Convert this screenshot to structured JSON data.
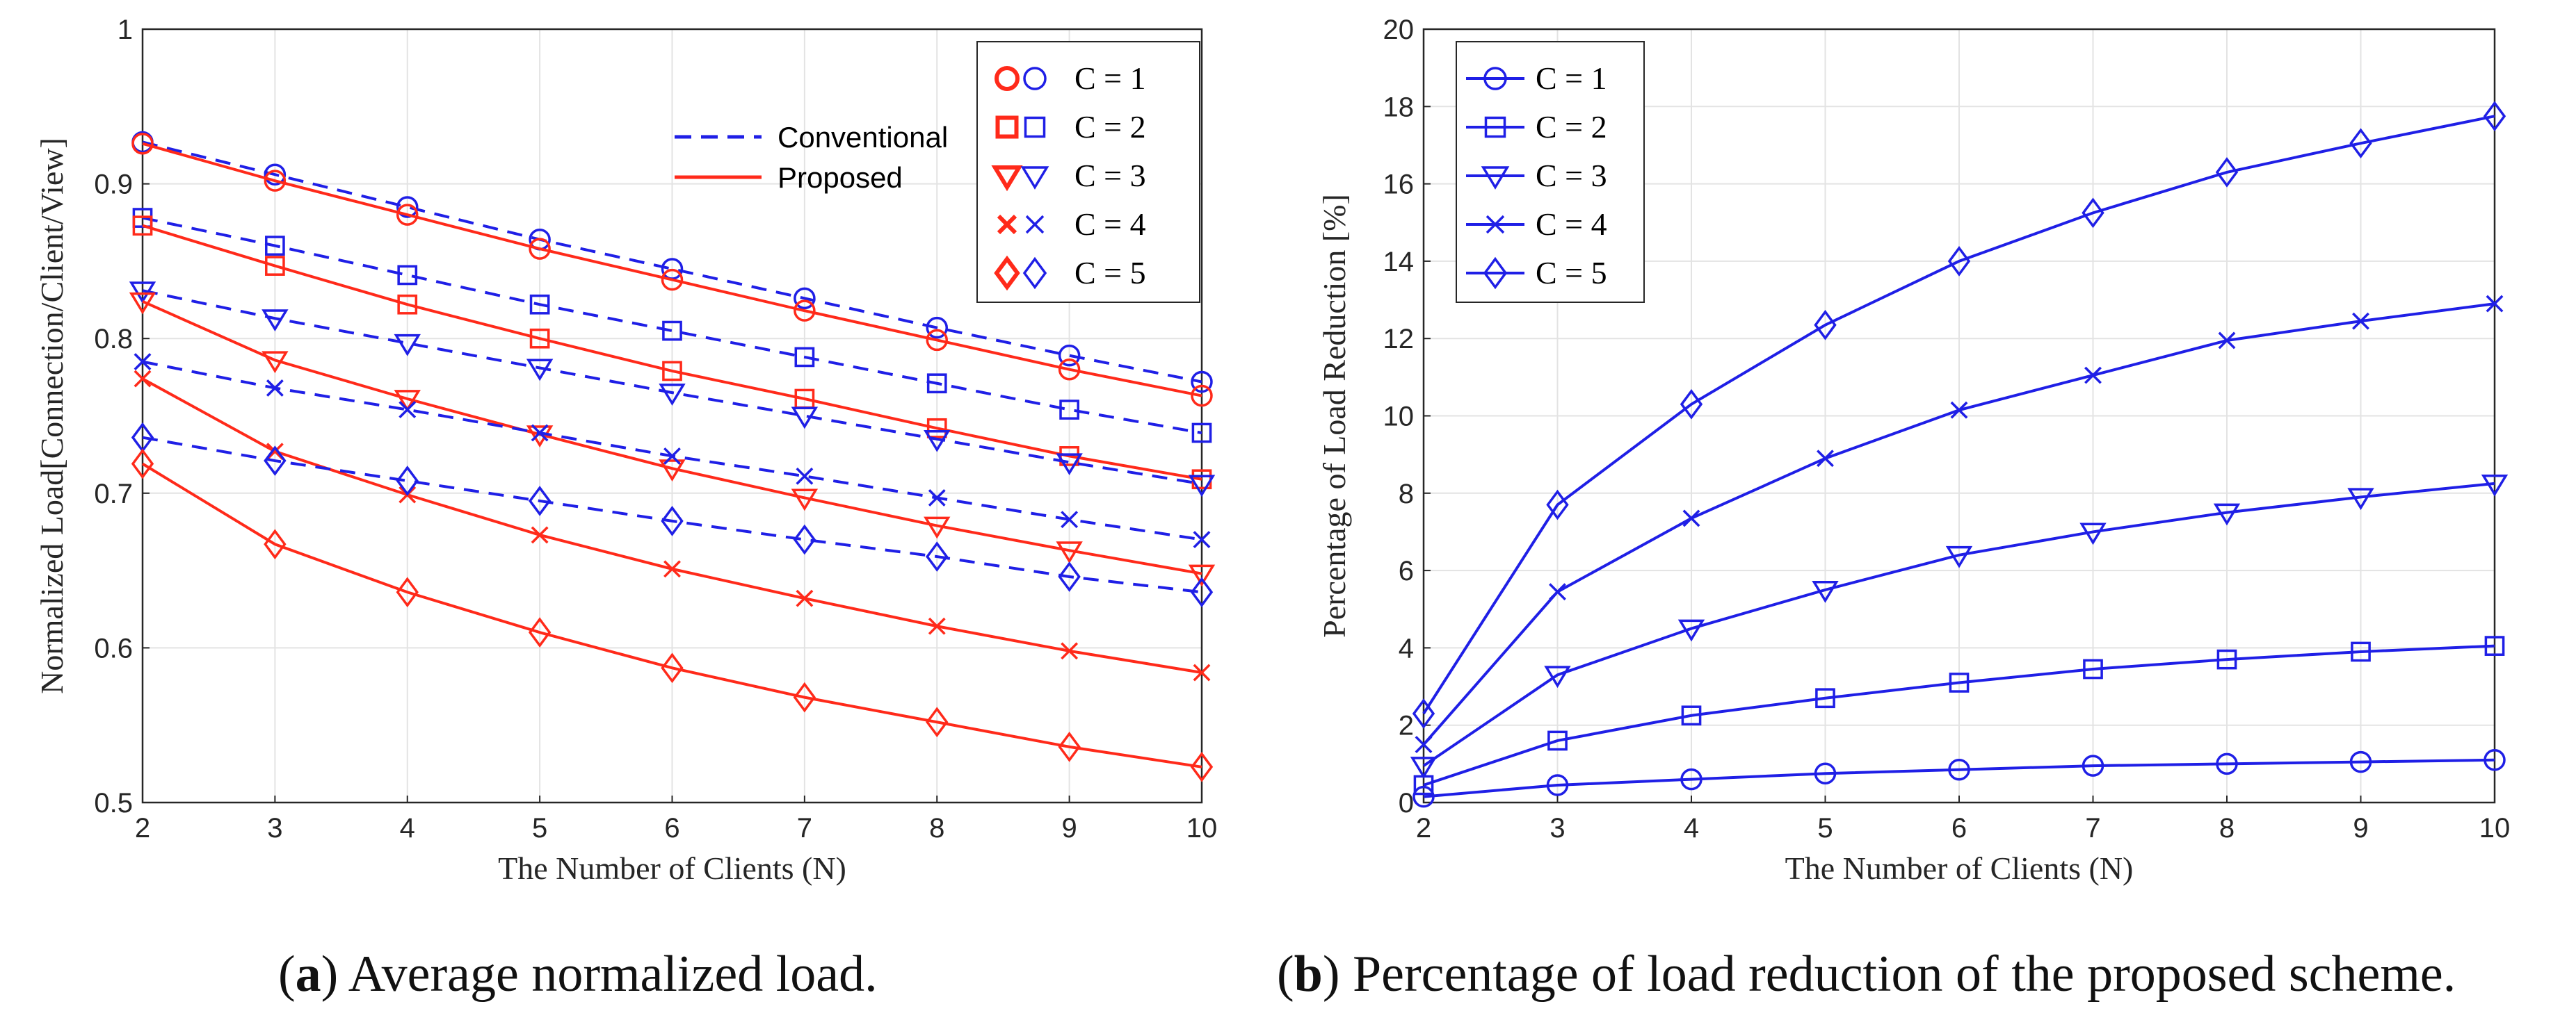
{
  "colors": {
    "conventional": "#1f1fe6",
    "proposed": "#ff2a1a",
    "grid": "#e3e3e3",
    "axis": "#262626"
  },
  "chart_data": [
    {
      "id": "a",
      "type": "line",
      "title": "",
      "xlabel": "The Number of Clients (N)",
      "ylabel": "Normalized Load[Connection/Client/View]",
      "xlim": [
        2,
        10
      ],
      "ylim": [
        0.5,
        1
      ],
      "x_ticks": [
        "2",
        "3",
        "4",
        "5",
        "6",
        "7",
        "8",
        "9",
        "10"
      ],
      "y_ticks": [
        "0.5",
        "0.6",
        "0.7",
        "0.8",
        "0.9",
        "1"
      ],
      "grid": true,
      "x": [
        2,
        3,
        4,
        5,
        6,
        7,
        8,
        9,
        10
      ],
      "style_legend": [
        {
          "label": "Conventional",
          "style": "dashed",
          "color": "#1f1fe6"
        },
        {
          "label": "Proposed",
          "style": "solid",
          "color": "#ff2a1a"
        }
      ],
      "marker_legend": [
        {
          "label": "C = 1",
          "marker": "circle"
        },
        {
          "label": "C = 2",
          "marker": "square"
        },
        {
          "label": "C = 3",
          "marker": "triangle-down"
        },
        {
          "label": "C = 4",
          "marker": "x"
        },
        {
          "label": "C = 5",
          "marker": "diamond"
        }
      ],
      "series": [
        {
          "name": "Conventional, C = 1",
          "scheme": "conventional",
          "marker": "circle",
          "values": [
            0.927,
            0.906,
            0.885,
            0.864,
            0.845,
            0.826,
            0.807,
            0.789,
            0.772
          ]
        },
        {
          "name": "Proposed, C = 1",
          "scheme": "proposed",
          "marker": "circle",
          "values": [
            0.926,
            0.902,
            0.88,
            0.858,
            0.838,
            0.818,
            0.799,
            0.78,
            0.763
          ]
        },
        {
          "name": "Conventional, C = 2",
          "scheme": "conventional",
          "marker": "square",
          "values": [
            0.878,
            0.86,
            0.841,
            0.822,
            0.805,
            0.788,
            0.771,
            0.754,
            0.739
          ]
        },
        {
          "name": "Proposed, C = 2",
          "scheme": "proposed",
          "marker": "square",
          "values": [
            0.873,
            0.847,
            0.822,
            0.8,
            0.779,
            0.761,
            0.742,
            0.724,
            0.709
          ]
        },
        {
          "name": "Conventional, C = 3",
          "scheme": "conventional",
          "marker": "triangle-down",
          "values": [
            0.831,
            0.813,
            0.797,
            0.781,
            0.765,
            0.75,
            0.735,
            0.72,
            0.706
          ]
        },
        {
          "name": "Proposed, C = 3",
          "scheme": "proposed",
          "marker": "triangle-down",
          "values": [
            0.824,
            0.786,
            0.761,
            0.738,
            0.716,
            0.697,
            0.679,
            0.663,
            0.648
          ]
        },
        {
          "name": "Conventional, C = 4",
          "scheme": "conventional",
          "marker": "x",
          "values": [
            0.785,
            0.768,
            0.754,
            0.739,
            0.724,
            0.711,
            0.697,
            0.683,
            0.67
          ]
        },
        {
          "name": "Proposed, C = 4",
          "scheme": "proposed",
          "marker": "x",
          "values": [
            0.774,
            0.727,
            0.699,
            0.673,
            0.651,
            0.632,
            0.614,
            0.598,
            0.584
          ]
        },
        {
          "name": "Conventional, C = 5",
          "scheme": "conventional",
          "marker": "diamond",
          "values": [
            0.736,
            0.721,
            0.708,
            0.695,
            0.682,
            0.67,
            0.659,
            0.646,
            0.636
          ]
        },
        {
          "name": "Proposed, C = 5",
          "scheme": "proposed",
          "marker": "diamond",
          "values": [
            0.719,
            0.667,
            0.636,
            0.61,
            0.587,
            0.568,
            0.552,
            0.536,
            0.523
          ]
        }
      ]
    },
    {
      "id": "b",
      "type": "line",
      "title": "",
      "xlabel": "The Number of Clients (N)",
      "ylabel": "Percentage of Load Reduction [%]",
      "xlim": [
        2,
        10
      ],
      "ylim": [
        0,
        20
      ],
      "x_ticks": [
        "2",
        "3",
        "4",
        "5",
        "6",
        "7",
        "8",
        "9",
        "10"
      ],
      "y_ticks": [
        "0",
        "2",
        "4",
        "6",
        "8",
        "10",
        "12",
        "14",
        "16",
        "18",
        "20"
      ],
      "grid": true,
      "x": [
        2,
        3,
        4,
        5,
        6,
        7,
        8,
        9,
        10
      ],
      "legend_position": "top-left",
      "series": [
        {
          "name": "C = 1",
          "marker": "circle",
          "values": [
            0.15,
            0.45,
            0.6,
            0.75,
            0.85,
            0.95,
            1.0,
            1.05,
            1.1
          ]
        },
        {
          "name": "C = 2",
          "marker": "square",
          "values": [
            0.45,
            1.6,
            2.25,
            2.7,
            3.1,
            3.45,
            3.7,
            3.9,
            4.05
          ]
        },
        {
          "name": "C = 3",
          "marker": "triangle-down",
          "values": [
            0.95,
            3.3,
            4.5,
            5.5,
            6.4,
            7.0,
            7.5,
            7.9,
            8.25
          ]
        },
        {
          "name": "C = 4",
          "marker": "x",
          "values": [
            1.5,
            5.45,
            7.35,
            8.9,
            10.15,
            11.05,
            11.95,
            12.45,
            12.9
          ]
        },
        {
          "name": "C = 5",
          "marker": "diamond",
          "values": [
            2.3,
            7.7,
            10.3,
            12.35,
            14.0,
            15.25,
            16.3,
            17.05,
            17.75
          ]
        }
      ]
    }
  ],
  "captions": {
    "a_label": "a",
    "a_text": "Average normalized load.",
    "b_label": "b",
    "b_text": "Percentage of load reduction of the proposed scheme."
  }
}
